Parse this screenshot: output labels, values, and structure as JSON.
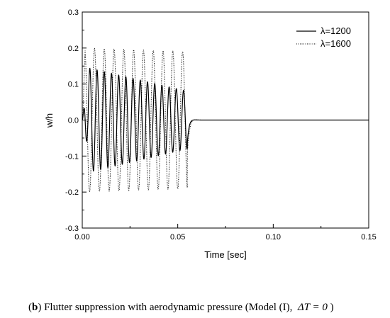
{
  "caption": {
    "open": "(",
    "label": "b",
    "text": ") Flutter suppression with aerodynamic pressure (Model (I),",
    "formula": "ΔT = 0",
    "close": ")"
  },
  "chart_data": {
    "type": "line",
    "title": "",
    "xlabel": "Time [sec]",
    "ylabel": "w/h",
    "xlim": [
      0.0,
      0.15
    ],
    "ylim": [
      -0.3,
      0.3
    ],
    "xticks": [
      "0.00",
      "0.05",
      "0.10",
      "0.15"
    ],
    "yticks": [
      "0.3",
      "0.2",
      "0.1",
      "0.0",
      "-0.1",
      "-0.2",
      "-0.3"
    ],
    "grid": false,
    "legend_position": "top-right",
    "series": [
      {
        "name": "λ=1200",
        "style": "solid",
        "color": "#000000",
        "segments": [
          {
            "t_start": 0.0,
            "t_end": 0.003,
            "freq": 330,
            "amp_start": 0.055,
            "amp_end": 0.06
          },
          {
            "t_start": 0.003,
            "t_end": 0.055,
            "freq": 265,
            "amp_start": 0.145,
            "amp_end": 0.08
          },
          {
            "t_start": 0.055,
            "t_end": 0.15,
            "freq": 75,
            "amp_start": 0.065,
            "amp_end": 0.0,
            "decay": 25
          }
        ]
      },
      {
        "name": "λ=1600",
        "style": "dotted",
        "color": "#000000",
        "segments": [
          {
            "t_start": 0.0,
            "t_end": 0.055,
            "freq": 195,
            "amp_start": 0.2,
            "amp_end": 0.19
          },
          {
            "t_start": 0.055,
            "t_end": 0.15,
            "freq": 84,
            "amp_start": 0.095,
            "amp_end": 0.0,
            "decay": 22
          }
        ]
      }
    ]
  }
}
